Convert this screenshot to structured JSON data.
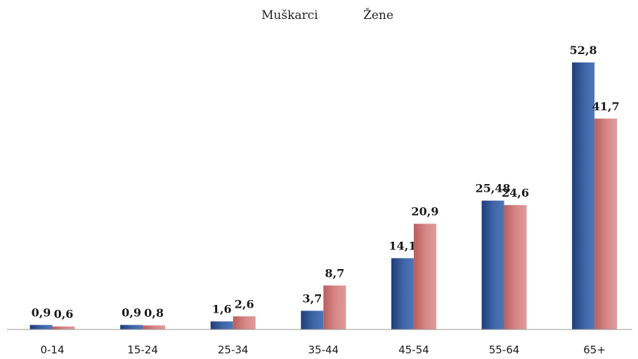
{
  "chart_data": {
    "type": "bar",
    "title": "",
    "xlabel": "",
    "ylabel": "",
    "categories": [
      "0-14",
      "15-24",
      "25-34",
      "35-44",
      "45-54",
      "55-64",
      "65+"
    ],
    "series": [
      {
        "name": "Muškarci",
        "values": [
          0.9,
          0.9,
          1.6,
          3.7,
          14.1,
          25.48,
          52.8
        ],
        "labels": [
          "0,9",
          "0,9",
          "1,6",
          "3,7",
          "14,1",
          "25,48",
          "52,8"
        ],
        "color": "#3a5f9e"
      },
      {
        "name": "Žene",
        "values": [
          0.6,
          0.8,
          2.6,
          8.7,
          20.9,
          24.6,
          41.7
        ],
        "labels": [
          "0,6",
          "0,8",
          "2,6",
          "8,7",
          "20,9",
          "24,6",
          "41,7"
        ],
        "color": "#d07f7f"
      }
    ],
    "ylim": [
      0,
      60
    ],
    "legend": "top-center",
    "grid": false
  }
}
